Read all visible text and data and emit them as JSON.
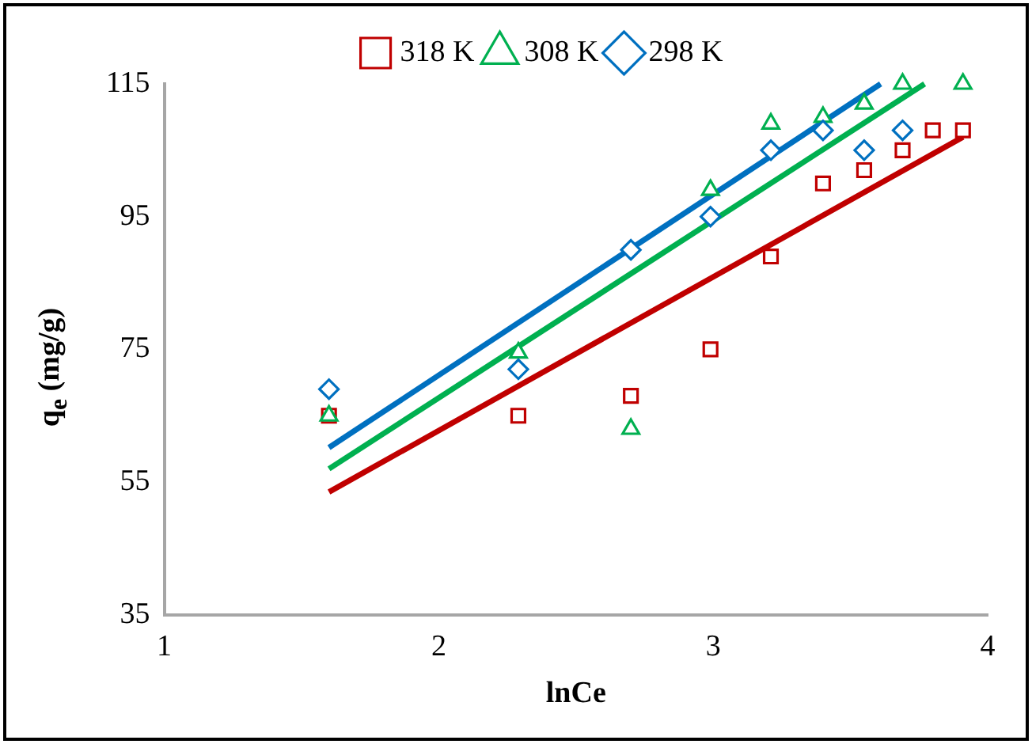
{
  "chart_data": {
    "type": "scatter",
    "xlabel": "lnCe",
    "ylabel": "q$_{e}$ (mg/g)",
    "xlim": [
      1,
      4
    ],
    "xticks": [
      1,
      2,
      3,
      4
    ],
    "ylim": [
      35,
      115
    ],
    "yticks": [
      35,
      55,
      75,
      95,
      115
    ],
    "grid": false,
    "legend": "top",
    "series": [
      {
        "name": "318 K",
        "color": "#c00000",
        "marker": "square",
        "x": [
          1.6,
          2.29,
          2.7,
          2.99,
          3.21,
          3.4,
          3.55,
          3.69,
          3.8,
          3.91
        ],
        "values": [
          65,
          65,
          68,
          75,
          89,
          100,
          102,
          105,
          108,
          108
        ]
      },
      {
        "name": "308 K",
        "color": "#00b050",
        "marker": "triangle",
        "x": [
          1.6,
          2.29,
          2.7,
          2.99,
          3.21,
          3.4,
          3.55,
          3.69,
          3.91
        ],
        "values": [
          65,
          74.5,
          63,
          99,
          109,
          110,
          112,
          115,
          115
        ]
      },
      {
        "name": "298 K",
        "color": "#0070c0",
        "marker": "diamond",
        "x": [
          1.6,
          2.29,
          2.7,
          2.99,
          3.21,
          3.4,
          3.55,
          3.69
        ],
        "values": [
          69,
          72,
          90,
          95,
          105,
          108,
          105,
          108
        ]
      },
      {
        "type": "line",
        "color": "#c00000",
        "x": [
          1.6,
          3.91
        ],
        "values": [
          53.5,
          107
        ]
      },
      {
        "type": "line",
        "color": "#00b050",
        "x": [
          1.6,
          3.77
        ],
        "values": [
          57,
          115
        ]
      },
      {
        "type": "line",
        "color": "#0070c0",
        "x": [
          1.6,
          3.61
        ],
        "values": [
          60.2,
          115
        ]
      }
    ]
  }
}
